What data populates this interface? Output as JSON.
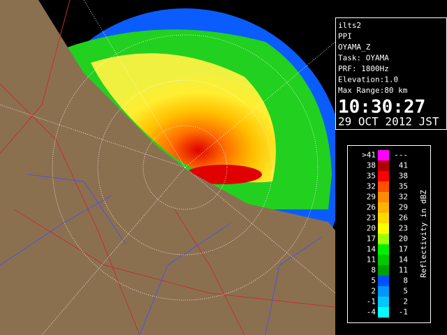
{
  "info": {
    "lines": [
      "ilts2",
      "PPI",
      "OYAMA_Z",
      "Task: OYAMA",
      "PRF: 1800Hz",
      "Elevation:1.0",
      "Max Range:80 km"
    ],
    "time": "10:30:27",
    "date": "29 OCT 2012 JST"
  },
  "legend": {
    "title": "Reflectivity in dBZ",
    "bins": [
      {
        "low": ">41",
        "high": "---",
        "color": "#ff00ff"
      },
      {
        "low": "38",
        "high": "41",
        "color": "#b00000"
      },
      {
        "low": "35",
        "high": "38",
        "color": "#ff0000"
      },
      {
        "low": "32",
        "high": "35",
        "color": "#ff5000"
      },
      {
        "low": "29",
        "high": "32",
        "color": "#ff8c00"
      },
      {
        "low": "26",
        "high": "29",
        "color": "#ffb400"
      },
      {
        "low": "23",
        "high": "26",
        "color": "#ffd800"
      },
      {
        "low": "20",
        "high": "23",
        "color": "#ffff00"
      },
      {
        "low": "17",
        "high": "20",
        "color": "#a0ff00"
      },
      {
        "low": "14",
        "high": "17",
        "color": "#00f000"
      },
      {
        "low": "11",
        "high": "14",
        "color": "#00c800"
      },
      {
        "low": "8",
        "high": "11",
        "color": "#00a000"
      },
      {
        "low": "5",
        "high": "8",
        "color": "#0050ff"
      },
      {
        "low": "2",
        "high": "5",
        "color": "#0096ff"
      },
      {
        "low": "-1",
        "high": "2",
        "color": "#00c8ff"
      },
      {
        "low": "-4",
        "high": "-1",
        "color": "#00ffff"
      }
    ]
  }
}
